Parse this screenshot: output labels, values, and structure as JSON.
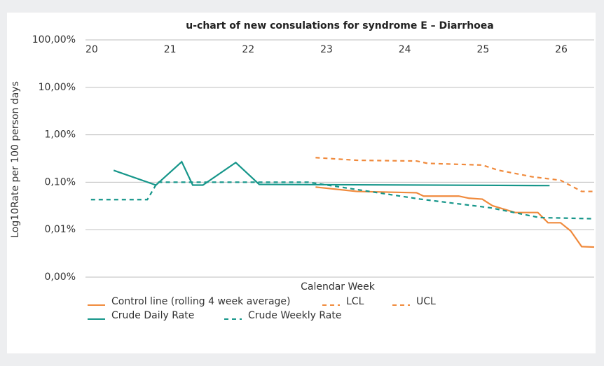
{
  "chart_data": {
    "type": "line",
    "title": "u-chart of new consulations for syndrome E – Diarrhoea",
    "x_label": "Calendar Week",
    "y_label": "Log10Rate per 100 person days",
    "log_scale": true,
    "grid": true,
    "xlim": [
      20,
      26.5
    ],
    "xticks": [
      20,
      21,
      22,
      23,
      24,
      25,
      26
    ],
    "ylim": [
      0.001,
      100
    ],
    "yticks": [
      {
        "value": 100,
        "label": "100,00%"
      },
      {
        "value": 10,
        "label": "10,00%"
      },
      {
        "value": 1,
        "label": "1,00%"
      },
      {
        "value": 0.1,
        "label": "0,10%"
      },
      {
        "value": 0.01,
        "label": "0,01%"
      },
      {
        "value": 0.001,
        "label": "0,00%"
      }
    ],
    "legend": "bottom",
    "series": [
      {
        "name": "Control line (rolling 4 week average)",
        "color": "#f08a3c",
        "dash": false,
        "x": [
          22.94,
          23.47,
          24.23,
          24.32,
          24.77,
          24.9,
          25.07,
          25.2,
          25.49,
          25.78,
          25.91,
          26.07,
          26.2,
          26.34,
          26.5
        ],
        "values": [
          0.079,
          0.064,
          0.06,
          0.051,
          0.051,
          0.046,
          0.044,
          0.032,
          0.023,
          0.023,
          0.014,
          0.014,
          0.0094,
          0.0044,
          0.0043
        ]
      },
      {
        "name": "LCL",
        "color": "#f08a3c",
        "dash": true,
        "x": [],
        "values": []
      },
      {
        "name": "UCL",
        "color": "#f08a3c",
        "dash": true,
        "x": [
          22.94,
          23.47,
          24.23,
          24.37,
          25.07,
          25.27,
          25.71,
          26.07,
          26.34,
          26.5
        ],
        "values": [
          0.33,
          0.29,
          0.28,
          0.25,
          0.23,
          0.18,
          0.13,
          0.11,
          0.064,
          0.064
        ]
      },
      {
        "name": "Crude Daily Rate",
        "color": "#16968a",
        "dash": false,
        "x": [
          20.36,
          20.9,
          21.23,
          21.37,
          21.5,
          21.92,
          22.22,
          25.93
        ],
        "values": [
          0.178,
          0.087,
          0.27,
          0.087,
          0.087,
          0.26,
          0.09,
          0.085
        ]
      },
      {
        "name": "Crude Weekly Rate",
        "color": "#16968a",
        "dash": true,
        "x": [
          20.07,
          20.79,
          20.92,
          22.85,
          24.28,
          25.17,
          25.8,
          26.5
        ],
        "values": [
          0.043,
          0.043,
          0.1,
          0.1,
          0.044,
          0.029,
          0.018,
          0.017
        ]
      }
    ]
  }
}
